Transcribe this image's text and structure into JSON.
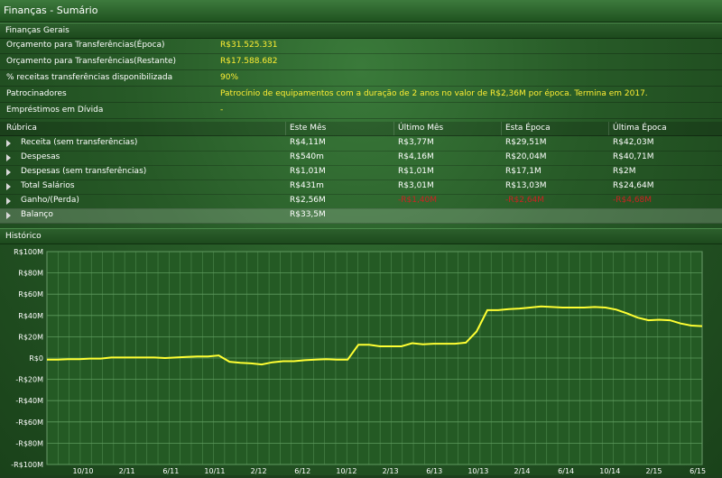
{
  "window": {
    "title": "Finanças - Sumário"
  },
  "general": {
    "header": "Finanças Gerais",
    "rows": [
      {
        "label": "Orçamento para Transferências(Época)",
        "value": "R$31.525.331"
      },
      {
        "label": "Orçamento para Transferências(Restante)",
        "value": "R$17.588.682"
      },
      {
        "label": "% receitas transferências disponibilizada",
        "value": "90%"
      },
      {
        "label": "Patrocinadores",
        "value": "Patrocínio de equipamentos com a duração de 2 anos no valor de R$2,36M por época. Termina em 2017."
      },
      {
        "label": "Empréstimos em Dívida",
        "value": "-"
      }
    ]
  },
  "table": {
    "headers": [
      "Rúbrica",
      "Este Mês",
      "Último Mês",
      "Esta Época",
      "Última Época"
    ],
    "rows": [
      {
        "name": "Receita (sem transferências)",
        "cells": [
          "R$4,11M",
          "R$3,77M",
          "R$29,51M",
          "R$42,03M"
        ],
        "negative": [
          false,
          false,
          false,
          false
        ]
      },
      {
        "name": "Despesas",
        "cells": [
          "R$540m",
          "R$4,16M",
          "R$20,04M",
          "R$40,71M"
        ],
        "negative": [
          false,
          false,
          false,
          false
        ]
      },
      {
        "name": "Despesas (sem transferências)",
        "cells": [
          "R$1,01M",
          "R$1,01M",
          "R$17,1M",
          "R$2M"
        ],
        "negative": [
          false,
          false,
          false,
          false
        ]
      },
      {
        "name": "Total Salários",
        "cells": [
          "R$431m",
          "R$3,01M",
          "R$13,03M",
          "R$24,64M"
        ],
        "negative": [
          false,
          false,
          false,
          false
        ]
      },
      {
        "name": "Ganho/(Perda)",
        "cells": [
          "R$2,56M",
          "-R$1,40M",
          "-R$2,64M",
          "-R$4,68M"
        ],
        "negative": [
          false,
          true,
          true,
          true
        ]
      },
      {
        "name": "Balanço",
        "cells": [
          "R$33,5M",
          "",
          "",
          ""
        ],
        "negative": [
          false,
          false,
          false,
          false
        ],
        "highlight": true
      }
    ]
  },
  "history": {
    "header": "Histórico"
  },
  "colors": {
    "line": "#ffff33",
    "negative": "#cc2222",
    "value": "#ffee33"
  },
  "chart_data": {
    "type": "line",
    "title": "",
    "xlabel": "",
    "ylabel": "",
    "ylim": [
      -100,
      100
    ],
    "yunit": "R$ M",
    "yticks": [
      "R$100M",
      "R$80M",
      "R$60M",
      "R$40M",
      "R$20M",
      "R$0",
      "-R$20M",
      "-R$40M",
      "-R$60M",
      "-R$80M",
      "-R$100M"
    ],
    "xticks": [
      "10/10",
      "2/11",
      "6/11",
      "10/11",
      "2/12",
      "6/12",
      "10/12",
      "2/13",
      "6/13",
      "10/13",
      "2/14",
      "6/14",
      "10/14",
      "2/15",
      "6/15"
    ],
    "grid": true,
    "series": [
      {
        "values": [
          -1.5,
          -1.5,
          -1,
          -1,
          -0.5,
          -0.5,
          0.5,
          0.5,
          0.5,
          0.5,
          0.5,
          0,
          0.5,
          1,
          1.5,
          1.5,
          2.5,
          -3.5,
          -4.5,
          -5,
          -6,
          -4,
          -3,
          -3,
          -2,
          -1.5,
          -1,
          -1.5,
          -1.5,
          12.5,
          12.5,
          11,
          11,
          11,
          14,
          13,
          13.5,
          13.5,
          13.5,
          14.5,
          25,
          45,
          45,
          46,
          46.5,
          47.5,
          48.5,
          48,
          47.5,
          47.5,
          47.5,
          48,
          47.5,
          45.5,
          42,
          38,
          35.5,
          36,
          35.5,
          32.5,
          30.5,
          30
        ]
      }
    ]
  }
}
